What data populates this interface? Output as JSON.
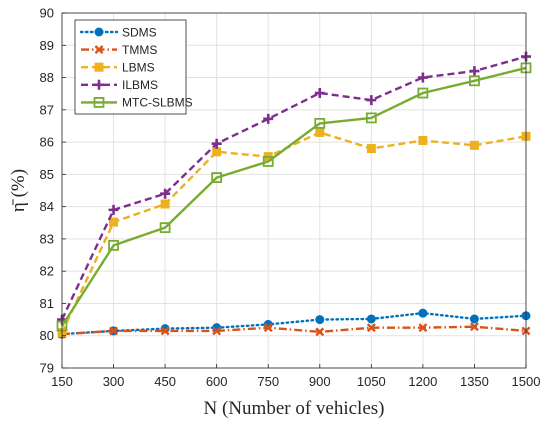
{
  "chart_data": {
    "type": "line",
    "xlabel": "N (Number of vehicles)",
    "ylabel": "η̄ (%)",
    "x": [
      150,
      300,
      450,
      600,
      750,
      900,
      1050,
      1200,
      1350,
      1500
    ],
    "xticks": [
      "150",
      "300",
      "450",
      "600",
      "750",
      "900",
      "1050",
      "1200",
      "1350",
      "1500"
    ],
    "xlim": [
      150,
      1500
    ],
    "ylim": [
      79,
      90
    ],
    "yticks": [
      "79",
      "80",
      "81",
      "82",
      "83",
      "84",
      "85",
      "86",
      "87",
      "88",
      "89",
      "90"
    ],
    "grid": true,
    "legend_position": "top-left",
    "series": [
      {
        "name": "SDMS",
        "color": "#0072BD",
        "dash": "dotted",
        "marker": "circle",
        "values": [
          80.05,
          80.15,
          80.22,
          80.25,
          80.35,
          80.5,
          80.52,
          80.7,
          80.52,
          80.62
        ]
      },
      {
        "name": "TMMS",
        "color": "#D95319",
        "dash": "dashdot",
        "marker": "x",
        "values": [
          80.05,
          80.15,
          80.15,
          80.15,
          80.25,
          80.12,
          80.25,
          80.25,
          80.28,
          80.15
        ]
      },
      {
        "name": "LBMS",
        "color": "#EDB120",
        "dash": "dashed",
        "marker": "square",
        "values": [
          80.1,
          83.52,
          84.08,
          85.7,
          85.55,
          86.3,
          85.8,
          86.05,
          85.9,
          86.18
        ]
      },
      {
        "name": "ILBMS",
        "color": "#7E2F8E",
        "dash": "dashed",
        "marker": "plus",
        "values": [
          80.5,
          83.9,
          84.4,
          85.95,
          86.72,
          87.52,
          87.3,
          88.0,
          88.2,
          88.65
        ]
      },
      {
        "name": "MTC-SLBMS",
        "color": "#77AC30",
        "dash": "solid",
        "marker": "square-open",
        "values": [
          80.3,
          82.8,
          83.35,
          84.9,
          85.4,
          86.58,
          86.75,
          87.52,
          87.9,
          88.3
        ]
      }
    ]
  }
}
